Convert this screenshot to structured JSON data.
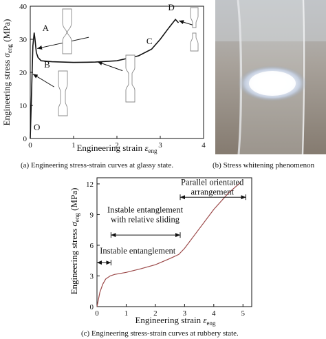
{
  "figure": {
    "caption_a": "(a)  Engineering stress-strain curves at glassy state.",
    "caption_b": "(b)  Stress whitening phenomenon",
    "caption_c": "(c)  Engineering stress-strain curves at rubbery state."
  },
  "chart_data": [
    {
      "panel": "a",
      "type": "line",
      "xlabel": "Engineering strain εeng",
      "ylabel": "Engineering stress σeng (MPa)",
      "xlim": [
        0,
        4
      ],
      "ylim": [
        0,
        40
      ],
      "xticks": [
        "0",
        "1",
        "2",
        "3",
        "4"
      ],
      "yticks": [
        "0",
        "10",
        "20",
        "30",
        "40"
      ],
      "series": [
        {
          "x": [
            0.0,
            0.03,
            0.06,
            0.09,
            0.11,
            0.14,
            0.18,
            0.25,
            0.5,
            1.0,
            1.5,
            2.0,
            2.5,
            2.8,
            3.0,
            3.2,
            3.35,
            3.42
          ],
          "y": [
            0.0,
            14.0,
            28.0,
            32.0,
            30.0,
            26.0,
            24.5,
            23.5,
            23.2,
            23.0,
            23.1,
            23.5,
            25.0,
            27.0,
            30.0,
            33.5,
            36.0,
            35.0
          ]
        }
      ],
      "annotations": [
        "O",
        "A",
        "B",
        "C",
        "D"
      ],
      "grid": false,
      "legend": "none"
    },
    {
      "panel": "c",
      "type": "line",
      "xlabel": "Engineering strain εeng",
      "ylabel": "Engineering stress σeng (MPa)",
      "xlim": [
        0,
        5.3
      ],
      "ylim": [
        0,
        12.6
      ],
      "xticks": [
        "0",
        "1",
        "2",
        "3",
        "4",
        "5"
      ],
      "yticks": [
        "0",
        "3",
        "6",
        "9",
        "12"
      ],
      "series": [
        {
          "x": [
            0.0,
            0.1,
            0.2,
            0.3,
            0.45,
            0.6,
            0.8,
            1.0,
            1.5,
            2.0,
            2.5,
            2.8,
            3.0,
            3.5,
            4.0,
            4.5,
            4.9
          ],
          "y": [
            0.0,
            1.4,
            2.2,
            2.7,
            3.0,
            3.15,
            3.25,
            3.35,
            3.7,
            4.1,
            4.7,
            5.1,
            5.7,
            7.6,
            9.5,
            11.1,
            12.1
          ]
        }
      ],
      "annotations": [
        "Instable entanglement",
        "Instable entanglement with relative sliding",
        "Parallel orientated arrangement"
      ],
      "ranges": [
        [
          0,
          0.48
        ],
        [
          0.48,
          2.85
        ],
        [
          2.85,
          5.1
        ]
      ],
      "grid": false,
      "legend": "none"
    }
  ]
}
